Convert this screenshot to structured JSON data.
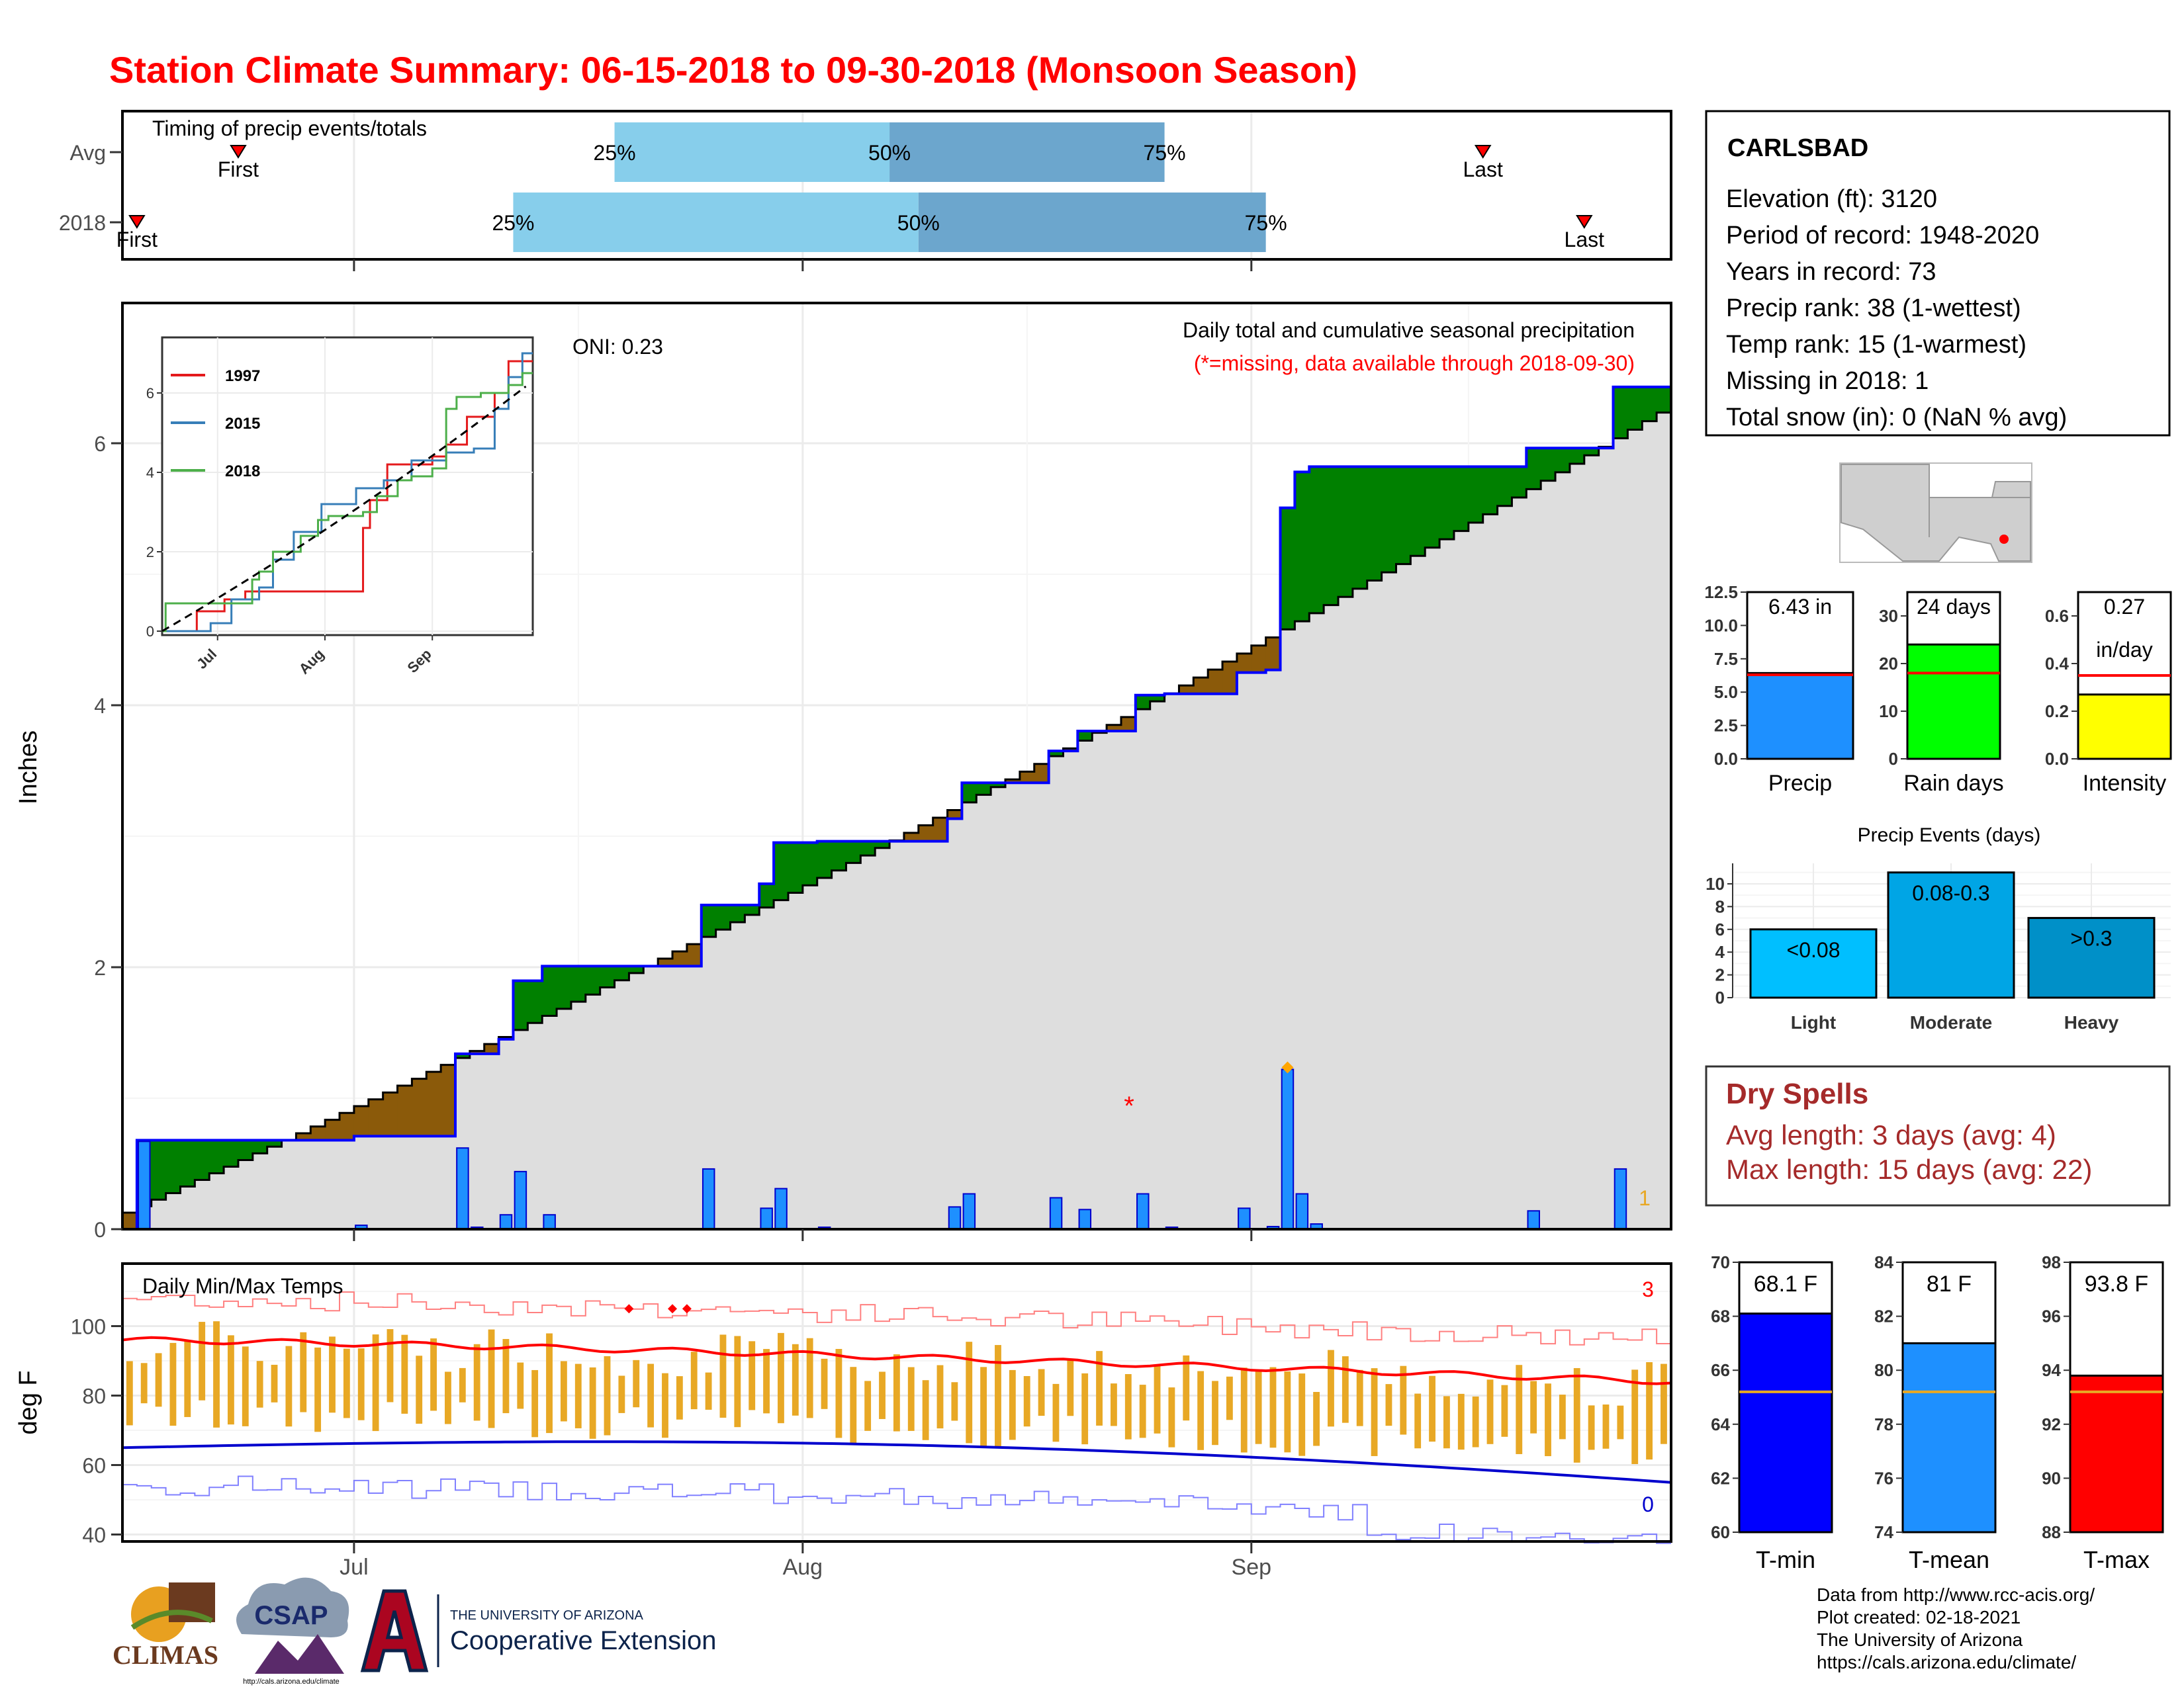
{
  "title": "Station Climate Summary: 06-15-2018 to 09-30-2018 (Monsoon Season)",
  "colors": {
    "title": "#ff0000",
    "green": "#008000",
    "brown": "#8b5a0a",
    "blue": "#0000ff",
    "bar": "#1e90ff",
    "gray": "#dedede",
    "q1": "#87ceeb",
    "q2": "#6ca6cd",
    "orange": "#e8a825",
    "red": "#ff0000",
    "drySpell": "#a52a2a"
  },
  "timing": {
    "label": "Timing of precip events/totals",
    "rows": [
      {
        "name": "Avg",
        "first_day": 8,
        "last_day": 94,
        "p25_day": 34,
        "p50_day": 53,
        "p75_day": 72,
        "labels": {
          "first": "First",
          "last": "Last",
          "p25": "25%",
          "p50": "50%",
          "p75": "75%"
        }
      },
      {
        "name": "2018",
        "first_day": 1,
        "last_day": 101,
        "p25_day": 27,
        "p50_day": 55,
        "p75_day": 79,
        "labels": {
          "first": "First",
          "last": "Last",
          "p25": "25%",
          "p50": "50%",
          "p75": "75%"
        }
      }
    ]
  },
  "main": {
    "ylabel": "Inches",
    "oni": "ONI: 0.23",
    "subtitle": "Daily total and cumulative seasonal precipitation",
    "missing_note": "(*=missing, data available through 2018-09-30)",
    "missing_marker": "*",
    "count_label": "1",
    "yticks": [
      "0",
      "2",
      "4",
      "6"
    ],
    "xticks": [
      "Jul",
      "Aug",
      "Sep"
    ]
  },
  "inset": {
    "yticks": [
      "0",
      "2",
      "4",
      "6"
    ],
    "xticks": [
      "Jul",
      "Aug",
      "Sep"
    ],
    "legend": [
      {
        "label": "1997",
        "color": "#e41a1c"
      },
      {
        "label": "2015",
        "color": "#377eb8"
      },
      {
        "label": "2018",
        "color": "#4daf4a"
      }
    ]
  },
  "temps": {
    "label": "Daily Min/Max Temps",
    "ylabel": "deg F",
    "yticks": [
      "40",
      "60",
      "80",
      "100"
    ],
    "count_hot": "3",
    "count_cold": "0"
  },
  "station": {
    "name": "CARLSBAD",
    "lines": [
      "Elevation (ft): 3120",
      "Period of record: 1948-2020",
      "Years in record: 73",
      "Precip rank: 38 (1-wettest)",
      "Temp rank: 15 (1-warmest)",
      "Missing in 2018: 1",
      "Total snow (in): 0 (NaN % avg)"
    ]
  },
  "summary_bars": [
    {
      "name": "Precip",
      "label": "6.43 in",
      "value": 6.43,
      "avg": 6.3,
      "ymax": 12.5,
      "yticks": [
        "0.0",
        "2.5",
        "5.0",
        "7.5",
        "10.0",
        "12.5"
      ],
      "color": "#1e90ff"
    },
    {
      "name": "Rain days",
      "label": "24 days",
      "value": 24,
      "avg": 18,
      "ymax": 35,
      "yticks": [
        "0",
        "10",
        "20",
        "30"
      ],
      "color": "#00ff00"
    },
    {
      "name": "Intensity",
      "label": "0.27",
      "label2": "in/day",
      "value": 0.27,
      "avg": 0.35,
      "ymax": 0.7,
      "yticks": [
        "0.0",
        "0.2",
        "0.4",
        "0.6"
      ],
      "color": "#ffff00"
    }
  ],
  "precip_events": {
    "title": "Precip Events (days)",
    "yticks": [
      "0",
      "2",
      "4",
      "6",
      "8",
      "10"
    ],
    "bars": [
      {
        "category": "Light",
        "label": "<0.08",
        "value": 6,
        "color": "#00bfff"
      },
      {
        "category": "Moderate",
        "label": "0.08-0.3",
        "value": 11,
        "color": "#00a5e5"
      },
      {
        "category": "Heavy",
        "label": ">0.3",
        "value": 7,
        "color": "#0090c8"
      }
    ]
  },
  "dry_spells": {
    "title": "Dry Spells",
    "avg_length": "Avg length: 3 days (avg: 4)",
    "max_length": "Max length: 15 days (avg: 22)"
  },
  "temp_bars": [
    {
      "name": "T-min",
      "label": "68.1 F",
      "value": 68.1,
      "avg": 65.2,
      "ymin": 60,
      "ymax": 70,
      "yticks": [
        "60",
        "62",
        "64",
        "66",
        "68",
        "70"
      ],
      "color": "#0000ff"
    },
    {
      "name": "T-mean",
      "label": "81 F",
      "value": 81,
      "avg": 79.2,
      "ymin": 74,
      "ymax": 84,
      "yticks": [
        "74",
        "76",
        "78",
        "80",
        "82",
        "84"
      ],
      "color": "#1e90ff"
    },
    {
      "name": "T-max",
      "label": "93.8 F",
      "value": 93.8,
      "avg": 93.2,
      "ymin": 88,
      "ymax": 98,
      "yticks": [
        "88",
        "90",
        "92",
        "94",
        "96",
        "98"
      ],
      "color": "#ff0000"
    }
  ],
  "logos": {
    "climas": "CLIMAS",
    "csap": "CSAP",
    "csap_url": "http://cals.arizona.edu/climate",
    "ua_small": "THE UNIVERSITY OF ARIZONA",
    "ua_big": "Cooperative Extension"
  },
  "credits": [
    "Data from http://www.rcc-acis.org/",
    "Plot created: 02-18-2021",
    "The University of Arizona",
    "https://cals.arizona.edu/climate/"
  ],
  "chart_data": {
    "type": "area",
    "title": "Daily total and cumulative seasonal precipitation",
    "ylabel": "Inches",
    "x_start": "2018-06-15",
    "x_end": "2018-09-30",
    "ylim": [
      0,
      7
    ],
    "daily_precip_2018": [
      {
        "date": "2018-06-16",
        "value": 0.67
      },
      {
        "date": "2018-07-01",
        "value": 0.03
      },
      {
        "date": "2018-07-08",
        "value": 0.62
      },
      {
        "date": "2018-07-09",
        "value": 0.0
      },
      {
        "date": "2018-07-11",
        "value": 0.11
      },
      {
        "date": "2018-07-12",
        "value": 0.44
      },
      {
        "date": "2018-07-14",
        "value": 0.11
      },
      {
        "date": "2018-07-25",
        "value": 0.46
      },
      {
        "date": "2018-07-29",
        "value": 0.16
      },
      {
        "date": "2018-07-30",
        "value": 0.31
      },
      {
        "date": "2018-08-02",
        "value": 0.01
      },
      {
        "date": "2018-08-11",
        "value": 0.17
      },
      {
        "date": "2018-08-12",
        "value": 0.27
      },
      {
        "date": "2018-08-18",
        "value": 0.24
      },
      {
        "date": "2018-08-20",
        "value": 0.15
      },
      {
        "date": "2018-08-24",
        "value": 0.27
      },
      {
        "date": "2018-08-26",
        "value": 0.01
      },
      {
        "date": "2018-08-31",
        "value": 0.16
      },
      {
        "date": "2018-09-02",
        "value": 0.02
      },
      {
        "date": "2018-09-03",
        "value": 1.22
      },
      {
        "date": "2018-09-04",
        "value": 0.27
      },
      {
        "date": "2018-09-05",
        "value": 0.04
      },
      {
        "date": "2018-09-20",
        "value": 0.14
      },
      {
        "date": "2018-09-26",
        "value": 0.46
      }
    ],
    "missing_dates": [
      "2018-08-23"
    ],
    "cumulative_2018_total": 6.43,
    "cumulative_avg_total": 6.3,
    "temps": {
      "ylabel": "deg F",
      "ylim": [
        38,
        118
      ],
      "avg_max_start": 96,
      "avg_max_end": 84,
      "avg_min_start": 65,
      "avg_min_end": 55
    }
  }
}
